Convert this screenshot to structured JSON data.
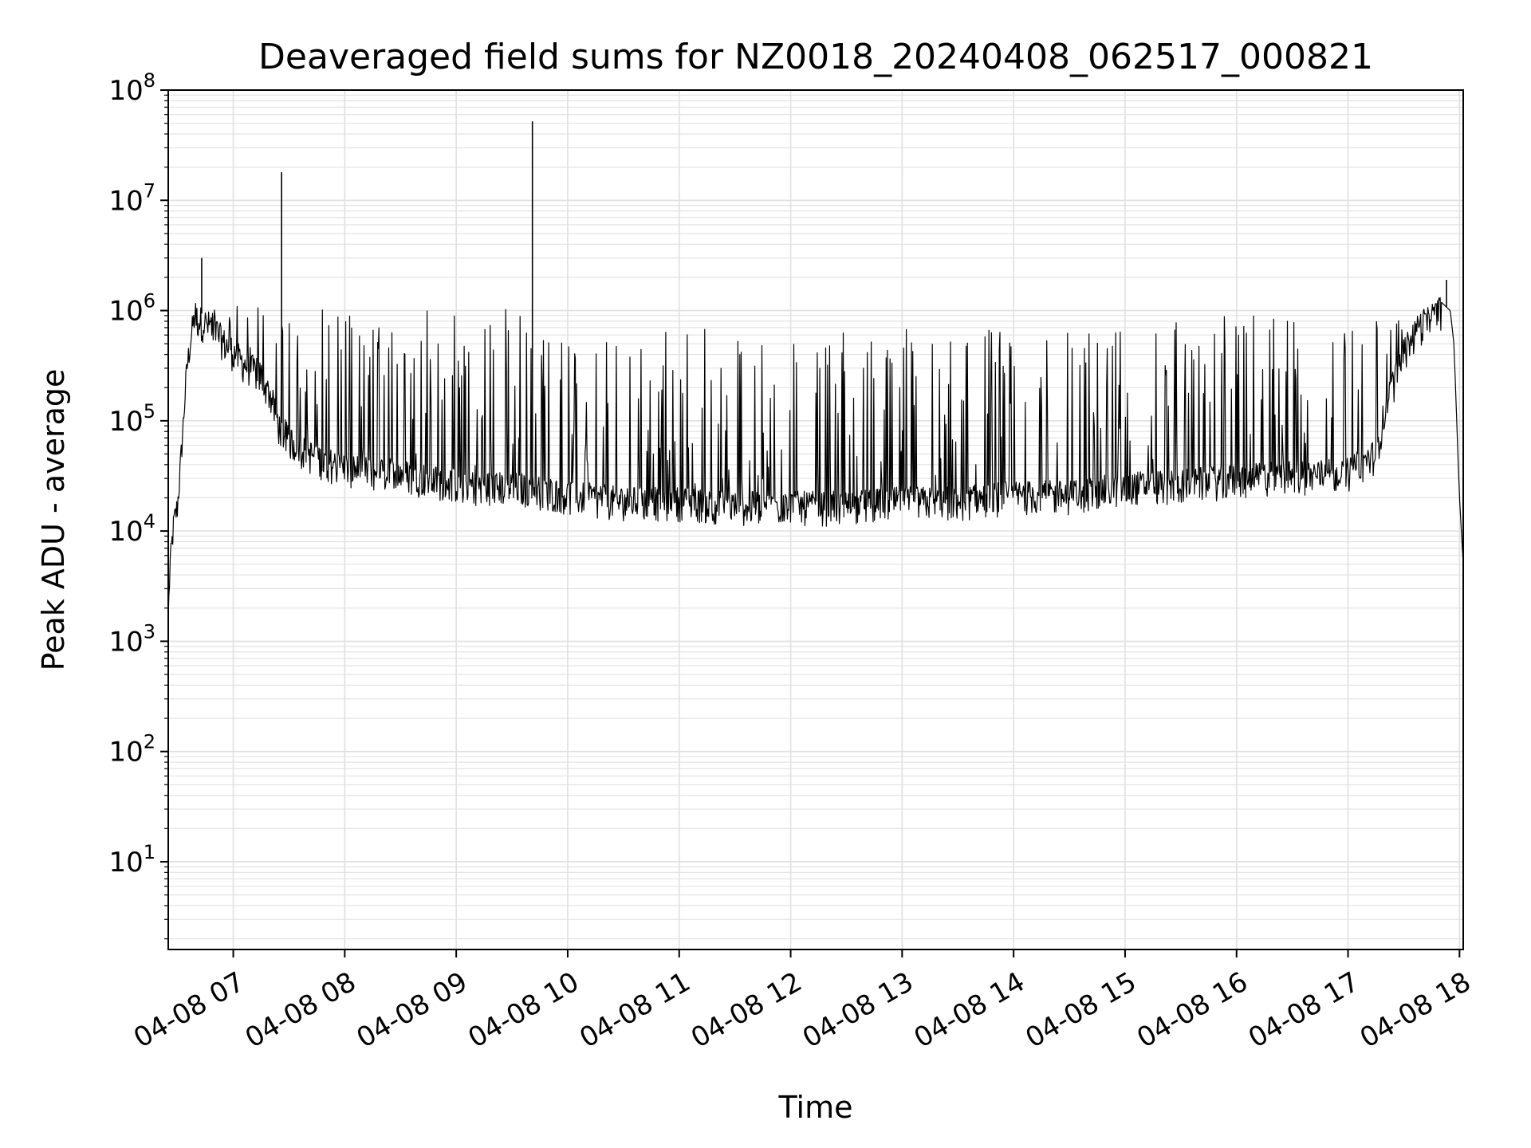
{
  "chart_data": {
    "type": "line",
    "title": "Deaveraged field sums for NZ0018_20240408_062517_000821",
    "xlabel": "Time",
    "ylabel": "Peak ADU - average",
    "yscale": "log",
    "ylim": [
      1.6,
      100000000
    ],
    "xlim": [
      "2024-04-08 06:25",
      "2024-04-08 18:02"
    ],
    "grid": true,
    "line_color": "#000000",
    "grid_color": "#e0e0e0",
    "x_ticks": [
      "04-08 07",
      "04-08 08",
      "04-08 09",
      "04-08 10",
      "04-08 11",
      "04-08 12",
      "04-08 13",
      "04-08 14",
      "04-08 15",
      "04-08 16",
      "04-08 17",
      "04-08 18"
    ],
    "y_ticks": [
      {
        "base": "10",
        "exp": "1"
      },
      {
        "base": "10",
        "exp": "2"
      },
      {
        "base": "10",
        "exp": "3"
      },
      {
        "base": "10",
        "exp": "4"
      },
      {
        "base": "10",
        "exp": "5"
      },
      {
        "base": "10",
        "exp": "6"
      },
      {
        "base": "10",
        "exp": "7"
      },
      {
        "base": "10",
        "exp": "8"
      }
    ],
    "series": [
      {
        "values_description_note": "",
        "x": [
          "06:25",
          "06:26",
          "06:28",
          "06:30",
          "06:32",
          "06:35",
          "06:38",
          "06:40",
          "06:45",
          "06:50",
          "06:55",
          "07:00",
          "07:05",
          "07:10",
          "07:15",
          "07:20",
          "07:25",
          "07:30",
          "07:40",
          "07:50",
          "08:00",
          "08:15",
          "08:30",
          "08:45",
          "09:00",
          "09:15",
          "09:30",
          "09:45",
          "10:00",
          "10:30",
          "11:00",
          "11:30",
          "12:00",
          "12:30",
          "13:00",
          "13:30",
          "14:00",
          "14:30",
          "15:00",
          "15:30",
          "16:00",
          "16:30",
          "17:00",
          "17:15",
          "17:20",
          "17:30",
          "17:40",
          "17:50",
          "17:55",
          "17:57",
          "18:00",
          "18:02"
        ],
        "y": [
          1600,
          5000,
          12000,
          17000,
          50000,
          300000,
          700000,
          1000000,
          900000,
          800000,
          600000,
          500000,
          400000,
          350000,
          300000,
          200000,
          100000,
          80000,
          60000,
          50000,
          45000,
          40000,
          40000,
          35000,
          32000,
          30000,
          30000,
          28000,
          25000,
          22000,
          22000,
          20000,
          20000,
          20000,
          22000,
          22000,
          25000,
          25000,
          30000,
          32000,
          35000,
          38000,
          40000,
          60000,
          150000,
          500000,
          900000,
          1200000,
          1000000,
          500000,
          20000,
          5000
        ]
      }
    ],
    "spikes": [
      {
        "x": "06:43",
        "y": 3000000
      },
      {
        "x": "07:26",
        "y": 18000000
      },
      {
        "x": "09:41",
        "y": 52000000
      },
      {
        "x": "17:53",
        "y": 1900000
      }
    ]
  }
}
